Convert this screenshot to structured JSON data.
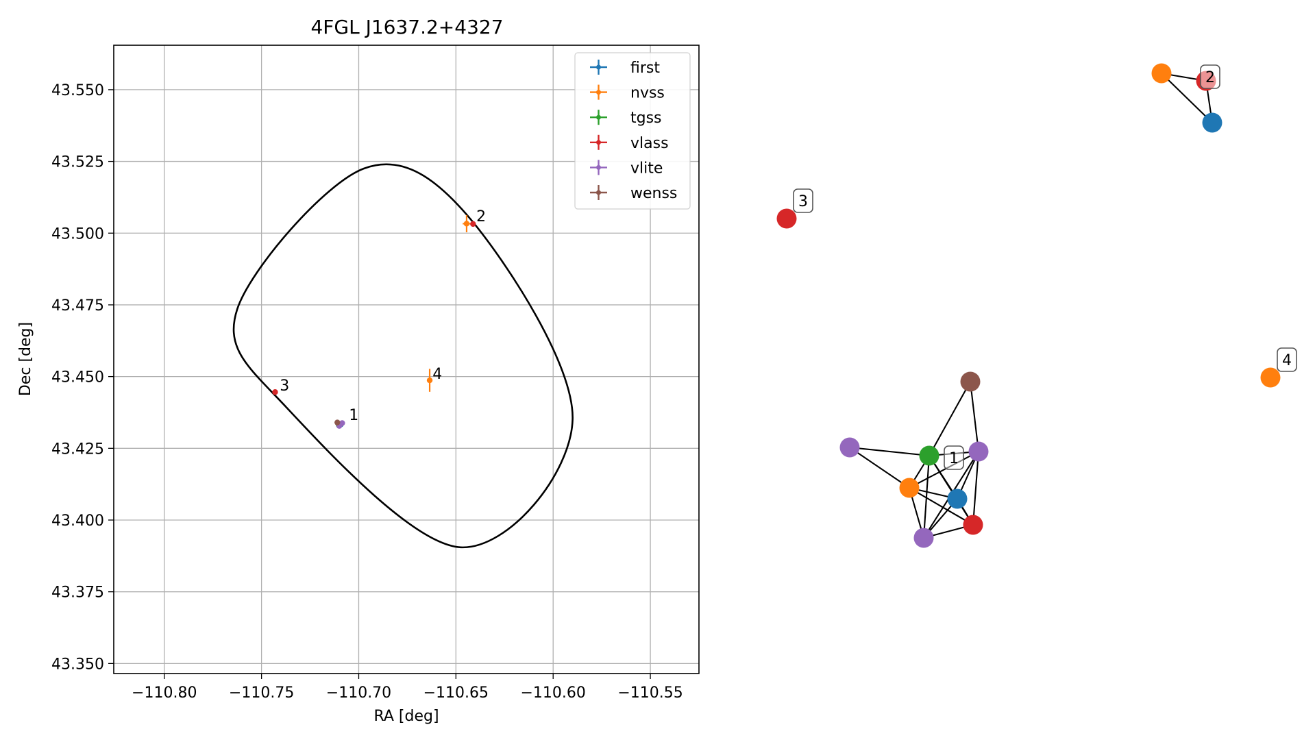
{
  "chart_data": [
    {
      "type": "scatter",
      "title": "4FGL J1637.2+4327",
      "xlabel": "RA [deg]",
      "ylabel": "Dec [deg]",
      "xlim": [
        -110.826,
        -110.525
      ],
      "ylim": [
        43.3465,
        43.5655
      ],
      "grid": true,
      "x_ticks": [
        -110.8,
        -110.75,
        -110.7,
        -110.65,
        -110.6,
        -110.55
      ],
      "x_tick_labels": [
        "−110.80",
        "−110.75",
        "−110.70",
        "−110.65",
        "−110.60",
        "−110.55"
      ],
      "y_ticks": [
        43.35,
        43.375,
        43.4,
        43.425,
        43.45,
        43.475,
        43.5,
        43.525,
        43.55
      ],
      "y_tick_labels": [
        "43.350",
        "43.375",
        "43.400",
        "43.425",
        "43.450",
        "43.475",
        "43.500",
        "43.525",
        "43.550"
      ],
      "legend": {
        "placement": "top-right",
        "entries": [
          {
            "label": "first",
            "color": "#1f77b4"
          },
          {
            "label": "nvss",
            "color": "#ff7f0e"
          },
          {
            "label": "tgss",
            "color": "#2ca02c"
          },
          {
            "label": "vlass",
            "color": "#d62728"
          },
          {
            "label": "vlite",
            "color": "#9467bd"
          },
          {
            "label": "wenss",
            "color": "#8c564b"
          }
        ]
      },
      "ellipse": {
        "center_ra": -110.6724,
        "center_dec": 43.4567,
        "vertices": [
          [
            -110.6975,
            43.5225
          ],
          [
            -110.642,
            43.5045
          ],
          [
            -110.59,
            43.435
          ],
          [
            -110.6475,
            43.3905
          ],
          [
            -110.7375,
            43.4395
          ],
          [
            -110.7625,
            43.4735
          ]
        ]
      },
      "series": [
        {
          "name": "first",
          "color": "#1f77b4",
          "points": [
            {
              "x": -110.7092,
              "y": 43.4333
            }
          ]
        },
        {
          "name": "nvss",
          "color": "#ff7f0e",
          "points": [
            {
              "x": -110.6445,
              "y": 43.5033,
              "xerr": 0.002,
              "yerr": 0.003
            },
            {
              "x": -110.6635,
              "y": 43.4487,
              "xerr": 0.001,
              "yerr": 0.004
            }
          ]
        },
        {
          "name": "tgss",
          "color": "#2ca02c",
          "points": [
            {
              "x": -110.7103,
              "y": 43.4331
            }
          ]
        },
        {
          "name": "vlass",
          "color": "#d62728",
          "points": [
            {
              "x": -110.6412,
              "y": 43.5032
            },
            {
              "x": -110.743,
              "y": 43.4446
            },
            {
              "x": -110.7093,
              "y": 43.4335
            }
          ]
        },
        {
          "name": "vlite",
          "color": "#9467bd",
          "points": [
            {
              "x": -110.71,
              "y": 43.4328
            },
            {
              "x": -110.7085,
              "y": 43.4338
            }
          ]
        },
        {
          "name": "wenss",
          "color": "#8c564b",
          "points": [
            {
              "x": -110.711,
              "y": 43.434
            }
          ]
        }
      ],
      "annotations": [
        {
          "text": "1",
          "x": -110.705,
          "y": 43.4358
        },
        {
          "text": "2",
          "x": -110.6395,
          "y": 43.5051
        },
        {
          "text": "3",
          "x": -110.7406,
          "y": 43.4461
        },
        {
          "text": "4",
          "x": -110.662,
          "y": 43.4502
        }
      ]
    },
    {
      "type": "network",
      "nodes": [
        {
          "id": "a",
          "color": "#2ca02c"
        },
        {
          "id": "b",
          "color": "#1f77b4"
        },
        {
          "id": "c",
          "color": "#ff7f0e"
        },
        {
          "id": "d",
          "color": "#d62728"
        },
        {
          "id": "e",
          "color": "#9467bd"
        },
        {
          "id": "f",
          "color": "#9467bd"
        },
        {
          "id": "g",
          "color": "#9467bd"
        },
        {
          "id": "h",
          "color": "#8c564b"
        },
        {
          "id": "i",
          "color": "#ff7f0e"
        },
        {
          "id": "j",
          "color": "#d62728"
        },
        {
          "id": "k",
          "color": "#1f77b4"
        },
        {
          "id": "l",
          "color": "#d62728"
        },
        {
          "id": "m",
          "color": "#ff7f0e"
        }
      ],
      "edges": [
        [
          "e",
          "a"
        ],
        [
          "e",
          "c"
        ],
        [
          "a",
          "h"
        ],
        [
          "a",
          "g"
        ],
        [
          "a",
          "c"
        ],
        [
          "a",
          "b"
        ],
        [
          "a",
          "f"
        ],
        [
          "a",
          "d"
        ],
        [
          "h",
          "g"
        ],
        [
          "c",
          "b"
        ],
        [
          "c",
          "d"
        ],
        [
          "c",
          "f"
        ],
        [
          "c",
          "g"
        ],
        [
          "b",
          "d"
        ],
        [
          "b",
          "f"
        ],
        [
          "b",
          "g"
        ],
        [
          "g",
          "d"
        ],
        [
          "g",
          "f"
        ],
        [
          "d",
          "f"
        ],
        [
          "i",
          "j"
        ],
        [
          "i",
          "k"
        ],
        [
          "j",
          "k"
        ]
      ],
      "labels": [
        {
          "text": "1",
          "node": "a"
        },
        {
          "text": "2",
          "node": "j"
        },
        {
          "text": "3",
          "node": "l"
        },
        {
          "text": "4",
          "node": "m"
        }
      ]
    }
  ]
}
